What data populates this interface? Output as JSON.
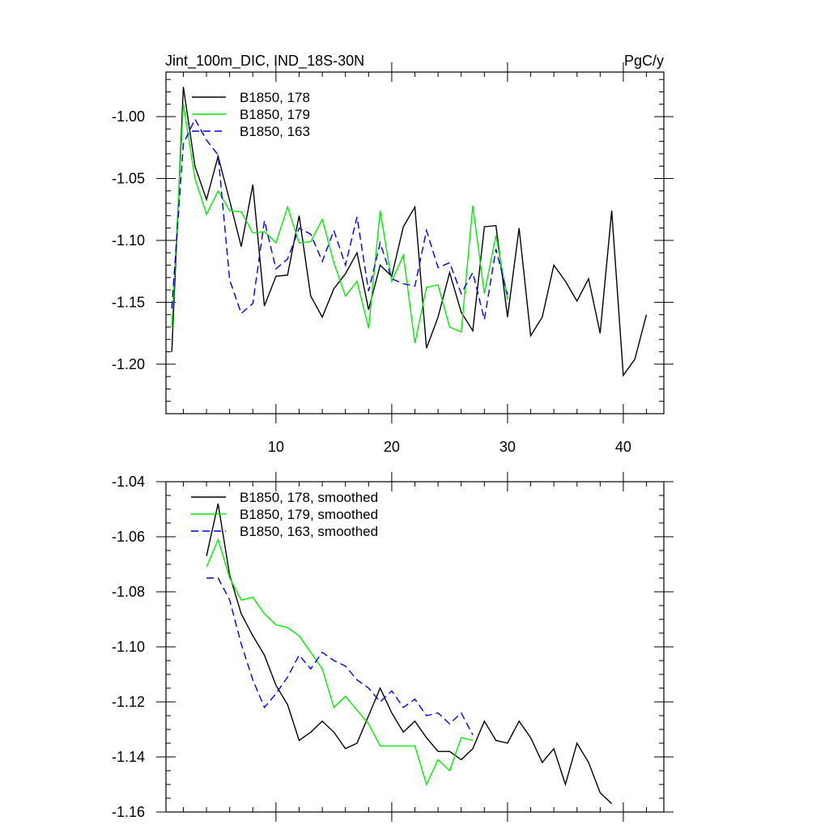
{
  "chart_data": [
    {
      "type": "line",
      "title_left": "Jint_100m_DIC, IND_18S-30N",
      "title_right": "PgC/y",
      "xlabel": "",
      "ylabel": "",
      "xlim": [
        0.5,
        43.5
      ],
      "ylim": [
        -1.24,
        -0.964
      ],
      "xticks": [
        10,
        20,
        30,
        40
      ],
      "xtick_labels": [
        "10",
        "20",
        "30",
        "40"
      ],
      "yticks": [
        -1.2,
        -1.15,
        -1.1,
        -1.05,
        -1.0
      ],
      "ytick_labels": [
        "-1.20",
        "-1.15",
        "-1.10",
        "-1.05",
        "-1.00"
      ],
      "legend_position": "top-left",
      "series": [
        {
          "name": "B1850, 178",
          "color": "#000000",
          "dash": "solid",
          "x": [
            1,
            2,
            3,
            4,
            5,
            6,
            7,
            8,
            9,
            10,
            11,
            12,
            13,
            14,
            15,
            16,
            17,
            18,
            19,
            20,
            21,
            22,
            23,
            24,
            25,
            26,
            27,
            28,
            29,
            30,
            31,
            32,
            33,
            34,
            35,
            36,
            37,
            38,
            39,
            40,
            41,
            42
          ],
          "values": [
            -1.19,
            -0.976,
            -1.04,
            -1.067,
            -1.032,
            -1.068,
            -1.105,
            -1.055,
            -1.153,
            -1.129,
            -1.128,
            -1.08,
            -1.145,
            -1.162,
            -1.139,
            -1.127,
            -1.11,
            -1.156,
            -1.12,
            -1.129,
            -1.089,
            -1.073,
            -1.187,
            -1.162,
            -1.126,
            -1.158,
            -1.173,
            -1.089,
            -1.088,
            -1.162,
            -1.09,
            -1.177,
            -1.162,
            -1.12,
            -1.133,
            -1.149,
            -1.131,
            -1.175,
            -1.076,
            -1.209,
            -1.196,
            -1.16
          ]
        },
        {
          "name": "B1850, 179",
          "color": "#00ee00",
          "dash": "solid",
          "x": [
            1,
            2,
            3,
            4,
            5,
            6,
            7,
            8,
            9,
            10,
            11,
            12,
            13,
            14,
            15,
            16,
            17,
            18,
            19,
            20,
            21,
            22,
            23,
            24,
            25,
            26,
            27,
            28,
            29,
            30
          ],
          "values": [
            -1.17,
            -0.99,
            -1.05,
            -1.079,
            -1.06,
            -1.076,
            -1.077,
            -1.094,
            -1.093,
            -1.102,
            -1.073,
            -1.102,
            -1.101,
            -1.083,
            -1.118,
            -1.145,
            -1.133,
            -1.171,
            -1.076,
            -1.133,
            -1.112,
            -1.183,
            -1.138,
            -1.136,
            -1.17,
            -1.174,
            -1.072,
            -1.143,
            -1.096,
            -1.148
          ]
        },
        {
          "name": "B1850, 163",
          "color": "#0000ee",
          "dash": "dashed",
          "x": [
            1,
            2,
            3,
            4,
            5,
            6,
            7,
            8,
            9,
            10,
            11,
            12,
            13,
            14,
            15,
            16,
            17,
            18,
            19,
            20,
            21,
            22,
            23,
            24,
            25,
            26,
            27,
            28,
            29,
            30
          ],
          "values": [
            -1.155,
            -1.022,
            -1.002,
            -1.019,
            -1.031,
            -1.132,
            -1.159,
            -1.151,
            -1.084,
            -1.123,
            -1.115,
            -1.09,
            -1.095,
            -1.117,
            -1.092,
            -1.12,
            -1.081,
            -1.141,
            -1.102,
            -1.131,
            -1.135,
            -1.137,
            -1.092,
            -1.122,
            -1.118,
            -1.143,
            -1.126,
            -1.164,
            -1.107,
            -1.144
          ]
        }
      ]
    },
    {
      "type": "line",
      "title": "",
      "xlabel": "",
      "ylabel": "",
      "xlim": [
        0.5,
        43.5
      ],
      "ylim": [
        -1.16,
        -1.04
      ],
      "xticks": [
        10,
        20,
        30,
        40
      ],
      "yticks": [
        -1.16,
        -1.14,
        -1.12,
        -1.1,
        -1.08,
        -1.06,
        -1.04
      ],
      "ytick_labels": [
        "-1.16",
        "-1.14",
        "-1.12",
        "-1.10",
        "-1.08",
        "-1.06",
        "-1.04"
      ],
      "legend_position": "top-left",
      "series": [
        {
          "name": "B1850, 178, smoothed",
          "color": "#000000",
          "dash": "solid",
          "x": [
            4,
            5,
            6,
            7,
            8,
            9,
            10,
            11,
            12,
            13,
            14,
            15,
            16,
            17,
            18,
            19,
            20,
            21,
            22,
            23,
            24,
            25,
            26,
            27,
            28,
            29,
            30,
            31,
            32,
            33,
            34,
            35,
            36,
            37,
            38,
            39
          ],
          "values": [
            -1.067,
            -1.048,
            -1.074,
            -1.088,
            -1.096,
            -1.103,
            -1.114,
            -1.121,
            -1.134,
            -1.131,
            -1.127,
            -1.131,
            -1.137,
            -1.135,
            -1.125,
            -1.115,
            -1.124,
            -1.131,
            -1.127,
            -1.133,
            -1.138,
            -1.138,
            -1.141,
            -1.137,
            -1.127,
            -1.134,
            -1.135,
            -1.127,
            -1.133,
            -1.142,
            -1.137,
            -1.15,
            -1.135,
            -1.142,
            -1.153,
            -1.157
          ]
        },
        {
          "name": "B1850, 179, smoothed",
          "color": "#00ee00",
          "dash": "solid",
          "x": [
            4,
            5,
            6,
            7,
            8,
            9,
            10,
            11,
            12,
            13,
            14,
            15,
            16,
            17,
            18,
            19,
            20,
            21,
            22,
            23,
            24,
            25,
            26,
            27
          ],
          "values": [
            -1.071,
            -1.061,
            -1.075,
            -1.083,
            -1.082,
            -1.088,
            -1.092,
            -1.093,
            -1.096,
            -1.102,
            -1.108,
            -1.122,
            -1.118,
            -1.123,
            -1.128,
            -1.136,
            -1.136,
            -1.136,
            -1.136,
            -1.15,
            -1.141,
            -1.145,
            -1.133,
            -1.134
          ]
        },
        {
          "name": "B1850, 163, smoothed",
          "color": "#0000ee",
          "dash": "dashed",
          "x": [
            4,
            5,
            6,
            7,
            8,
            9,
            10,
            11,
            12,
            13,
            14,
            15,
            16,
            17,
            18,
            19,
            20,
            21,
            22,
            23,
            24,
            25,
            26,
            27
          ],
          "values": [
            -1.075,
            -1.075,
            -1.083,
            -1.099,
            -1.112,
            -1.122,
            -1.117,
            -1.111,
            -1.103,
            -1.108,
            -1.102,
            -1.105,
            -1.107,
            -1.112,
            -1.115,
            -1.12,
            -1.116,
            -1.122,
            -1.119,
            -1.125,
            -1.124,
            -1.128,
            -1.124,
            -1.132
          ]
        }
      ]
    }
  ]
}
